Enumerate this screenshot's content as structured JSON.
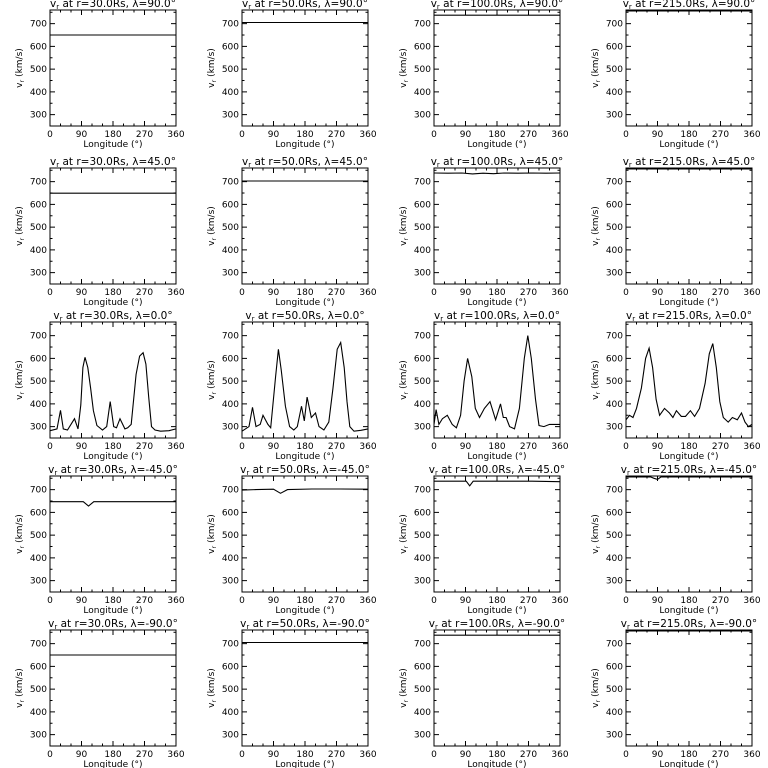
{
  "chart_data": {
    "type": "line",
    "common": {
      "xlabel": "Longitude (°)",
      "ylabel": "vr (km/s)",
      "xlim": [
        0,
        360
      ],
      "ylim": [
        250,
        760
      ],
      "xticks": [
        0,
        90,
        180,
        270,
        360
      ],
      "yticks": [
        300,
        400,
        500,
        600,
        700
      ],
      "ylabel_text": "v",
      "ylabel_sub": "r",
      "ylabel_unit": " (km/s)",
      "title_prefix_sym": "v",
      "title_prefix_sub": "r"
    },
    "panels": [
      {
        "title": " at r=30.0Rs,  λ=90.0°",
        "series": [
          {
            "x": [
              0,
              360
            ],
            "y": [
              650,
              650
            ]
          }
        ]
      },
      {
        "title": " at r=50.0Rs,  λ=90.0°",
        "series": [
          {
            "x": [
              0,
              360
            ],
            "y": [
              705,
              705
            ]
          }
        ]
      },
      {
        "title": " at r=100.0Rs,  λ=90.0°",
        "series": [
          {
            "x": [
              0,
              360
            ],
            "y": [
              737,
              737
            ]
          }
        ]
      },
      {
        "title": " at r=215.0Rs,  λ=90.0°",
        "series": [
          {
            "x": [
              0,
              360
            ],
            "y": [
              756,
              756
            ]
          }
        ]
      },
      {
        "title": " at r=30.0Rs,  λ=45.0°",
        "series": [
          {
            "x": [
              0,
              360
            ],
            "y": [
              649,
              649
            ]
          }
        ]
      },
      {
        "title": " at r=50.0Rs,  λ=45.0°",
        "series": [
          {
            "x": [
              0,
              360
            ],
            "y": [
              703,
              703
            ]
          }
        ]
      },
      {
        "title": " at r=100.0Rs,  λ=45.0°",
        "series": [
          {
            "x": [
              0,
              40,
              80,
              110,
              140,
              170,
              200,
              240,
              280,
              320,
              360
            ],
            "y": [
              738,
              737,
              738,
              734,
              737,
              735,
              738,
              737,
              738,
              737,
              738
            ]
          }
        ]
      },
      {
        "title": " at r=215.0Rs,  λ=45.0°",
        "series": [
          {
            "x": [
              0,
              360
            ],
            "y": [
              756,
              756
            ]
          }
        ]
      },
      {
        "title": " at r=30.0Rs,  λ=0.0°",
        "series": [
          {
            "x": [
              0,
              20,
              30,
              38,
              50,
              70,
              80,
              88,
              94,
              100,
              108,
              116,
              124,
              134,
              150,
              162,
              172,
              182,
              190,
              200,
              214,
              222,
              232,
              246,
              256,
              266,
              274,
              282,
              290,
              300,
              316,
              340,
              360
            ],
            "y": [
              282,
              290,
              372,
              290,
              285,
              335,
              290,
              395,
              560,
              605,
              560,
              470,
              370,
              305,
              285,
              300,
              410,
              300,
              295,
              335,
              290,
              295,
              310,
              530,
              610,
              625,
              575,
              430,
              300,
              285,
              280,
              282,
              290
            ]
          }
        ]
      },
      {
        "title": " at r=50.0Rs,  λ=0.0°",
        "series": [
          {
            "x": [
              0,
              20,
              30,
              40,
              52,
              60,
              74,
              82,
              96,
              104,
              112,
              124,
              136,
              148,
              158,
              170,
              178,
              186,
              198,
              210,
              220,
              234,
              248,
              260,
              272,
              282,
              292,
              300,
              308,
              320,
              340,
              360
            ],
            "y": [
              280,
              300,
              385,
              300,
              310,
              350,
              310,
              295,
              520,
              640,
              550,
              390,
              300,
              285,
              300,
              390,
              325,
              430,
              340,
              360,
              300,
              285,
              320,
              470,
              640,
              670,
              560,
              410,
              300,
              280,
              284,
              290
            ]
          }
        ]
      },
      {
        "title": " at r=100.0Rs,  λ=0.0°",
        "series": [
          {
            "x": [
              0,
              6,
              14,
              24,
              38,
              52,
              64,
              76,
              86,
              96,
              108,
              118,
              130,
              144,
              160,
              176,
              190,
              198,
              206,
              216,
              230,
              244,
              258,
              268,
              278,
              290,
              300,
              314,
              330,
              346,
              360
            ],
            "y": [
              310,
              375,
              310,
              335,
              350,
              310,
              295,
              350,
              500,
              600,
              520,
              380,
              340,
              380,
              410,
              330,
              400,
              340,
              340,
              300,
              290,
              380,
              600,
              700,
              600,
              420,
              305,
              300,
              310,
              310,
              310
            ]
          }
        ]
      },
      {
        "title": " at r=215.0Rs,  λ=0.0°",
        "series": [
          {
            "x": [
              0,
              10,
              20,
              30,
              44,
              56,
              66,
              76,
              86,
              96,
              110,
              124,
              134,
              144,
              158,
              170,
              184,
              196,
              210,
              226,
              238,
              248,
              258,
              268,
              278,
              292,
              304,
              318,
              330,
              340,
              350,
              360
            ],
            "y": [
              330,
              350,
              340,
              380,
              470,
              600,
              645,
              560,
              420,
              350,
              380,
              360,
              340,
              370,
              345,
              345,
              370,
              345,
              380,
              490,
              620,
              665,
              560,
              410,
              340,
              320,
              340,
              330,
              360,
              320,
              300,
              310
            ]
          }
        ]
      },
      {
        "title": " at r=30.0Rs,  λ=-45.0°",
        "series": [
          {
            "x": [
              0,
              95,
              110,
              125,
              360
            ],
            "y": [
              647,
              647,
              628,
              647,
              647
            ]
          }
        ]
      },
      {
        "title": " at r=50.0Rs,  λ=-45.0°",
        "series": [
          {
            "x": [
              0,
              40,
              90,
              110,
              130,
              200,
              280,
              360
            ],
            "y": [
              698,
              700,
              702,
              684,
              700,
              703,
              703,
              702
            ]
          }
        ]
      },
      {
        "title": " at r=100.0Rs,  λ=-45.0°",
        "series": [
          {
            "x": [
              0,
              80,
              92,
              102,
              112,
              180,
              280,
              360
            ],
            "y": [
              737,
              737,
              737,
              717,
              737,
              737,
              737,
              735
            ]
          }
        ]
      },
      {
        "title": " at r=215.0Rs,  λ=-45.0°",
        "series": [
          {
            "x": [
              0,
              70,
              80,
              90,
              100,
              360
            ],
            "y": [
              756,
              756,
              750,
              745,
              756,
              756
            ]
          }
        ]
      },
      {
        "title": " at r=30.0Rs,  λ=-90.0°",
        "series": [
          {
            "x": [
              0,
              360
            ],
            "y": [
              650,
              650
            ]
          }
        ]
      },
      {
        "title": " at r=50.0Rs,  λ=-90.0°",
        "series": [
          {
            "x": [
              0,
              360
            ],
            "y": [
              705,
              705
            ]
          }
        ]
      },
      {
        "title": " at r=100.0Rs,  λ=-90.0°",
        "series": [
          {
            "x": [
              0,
              360
            ],
            "y": [
              737,
              737
            ]
          }
        ]
      },
      {
        "title": " at r=215.0Rs,  λ=-90.0°",
        "series": [
          {
            "x": [
              0,
              360
            ],
            "y": [
              756,
              756
            ]
          }
        ]
      }
    ]
  }
}
